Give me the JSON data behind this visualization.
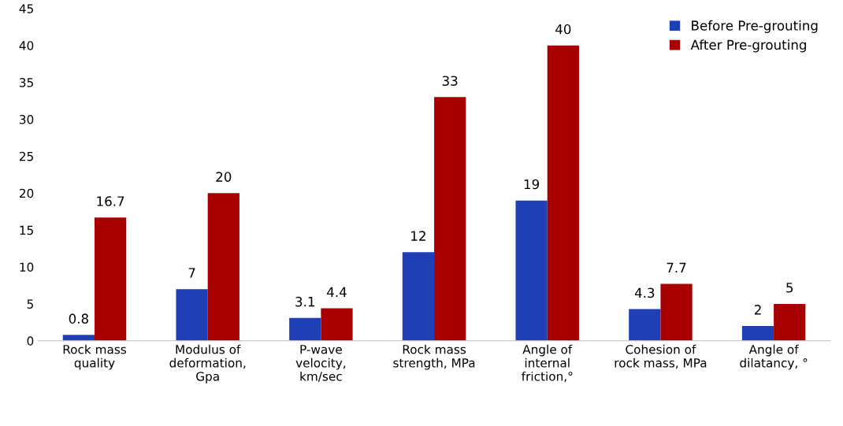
{
  "chart_data": {
    "type": "bar",
    "categories": [
      "Rock mass quality",
      "Modulus of deformation, Gpa",
      "P-wave velocity, km/sec",
      "Rock mass strength, MPa",
      "Angle of internal friction,°",
      "Cohesion of rock mass, MPa",
      "Angle of dilatancy, °"
    ],
    "series": [
      {
        "name": "Before Pre-grouting",
        "color": "#1f3fb4",
        "values": [
          0.8,
          7,
          3.1,
          12,
          19,
          4.3,
          2
        ]
      },
      {
        "name": "After Pre-grouting",
        "color": "#a80000",
        "values": [
          16.7,
          20,
          4.4,
          33,
          40,
          7.7,
          5
        ]
      }
    ],
    "ylim": [
      0,
      45
    ],
    "yticks": [
      0,
      5,
      10,
      15,
      20,
      25,
      30,
      35,
      40,
      45
    ],
    "data_labels": true,
    "legend": "top right",
    "grid": false
  }
}
